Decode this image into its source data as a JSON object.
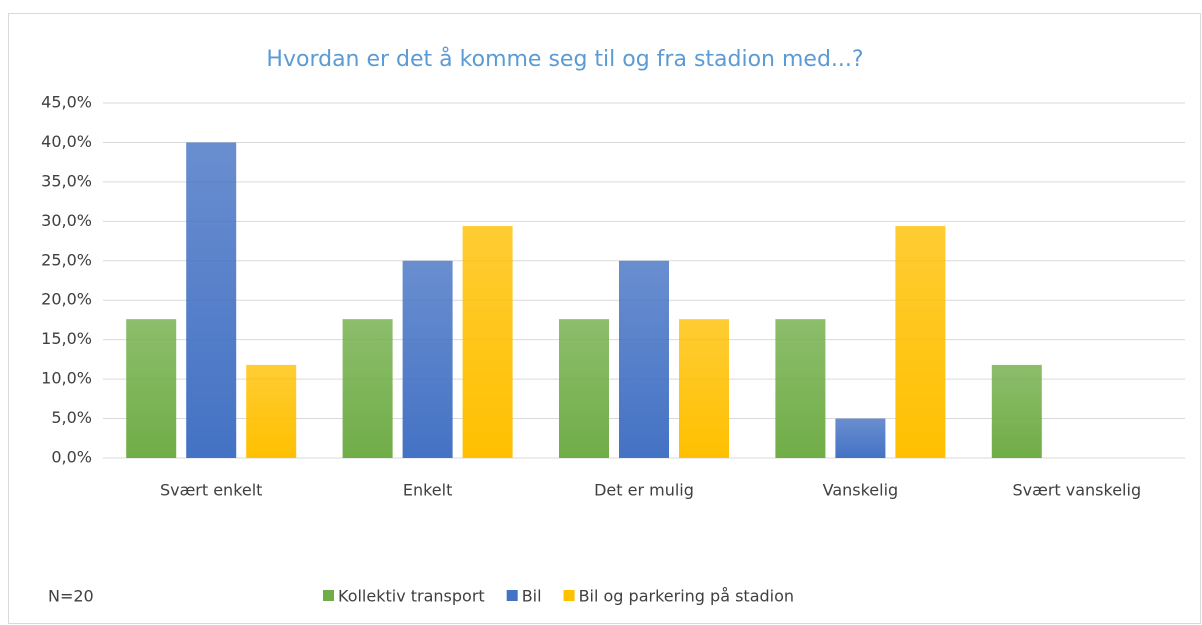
{
  "chart_data": {
    "type": "bar",
    "title": "Hvordan er det å komme seg til og fra stadion med...?",
    "annotation": "N=20",
    "categories": [
      "Svært enkelt",
      "Enkelt",
      "Det er mulig",
      "Vanskelig",
      "Svært vanskelig"
    ],
    "series": [
      {
        "name": "Kollektiv transport",
        "color": "#70ad47",
        "values": [
          17.6,
          17.6,
          17.6,
          17.6,
          11.8
        ]
      },
      {
        "name": "Bil",
        "color": "#4472c4",
        "values": [
          40,
          25,
          25,
          5,
          0
        ]
      },
      {
        "name": "Bil og parkering på stadion",
        "color": "#ffc000",
        "values": [
          11.8,
          29.4,
          17.6,
          29.4,
          0
        ]
      }
    ],
    "ylim": [
      0,
      45
    ],
    "yticks": [
      {
        "value": 0,
        "label": "0,0%"
      },
      {
        "value": 5,
        "label": "5,0%"
      },
      {
        "value": 10,
        "label": "10,0%"
      },
      {
        "value": 15,
        "label": "15,0%"
      },
      {
        "value": 20,
        "label": "20,0%"
      },
      {
        "value": 25,
        "label": "25,0%"
      },
      {
        "value": 30,
        "label": "30,0%"
      },
      {
        "value": 35,
        "label": "35,0%"
      },
      {
        "value": 40,
        "label": "40,0%"
      },
      {
        "value": 45,
        "label": "45,0%"
      }
    ],
    "grid": true,
    "legend": "bottom"
  }
}
